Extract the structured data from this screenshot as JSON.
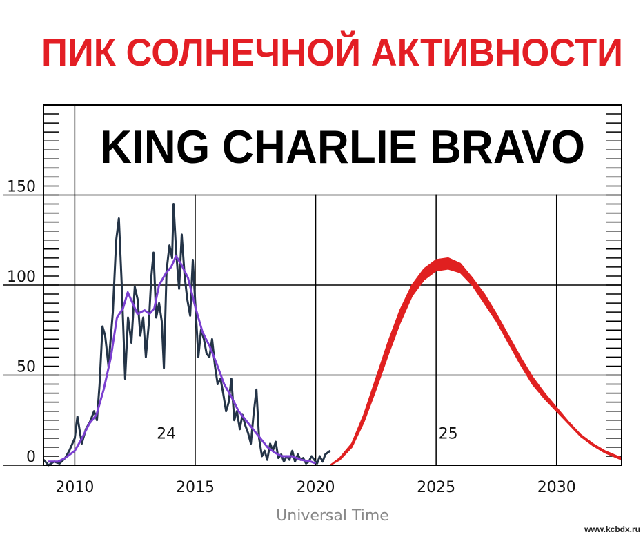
{
  "chart_data": {
    "type": "line",
    "title": "ПИК СОЛНЕЧНОЙ АКТИВНОСТИ",
    "subtitle": "KING CHARLIE BRAVO",
    "x_label": "Universal Time",
    "watermark": "www.kcbdx.ru",
    "xlim": [
      2008.7,
      2032.7
    ],
    "ylim": [
      0,
      200
    ],
    "xticks": [
      2010,
      2015,
      2020,
      2025,
      2030
    ],
    "yticks": [
      0,
      50,
      100,
      150
    ],
    "y_minor_step": 5,
    "grid": true,
    "annotations": [
      {
        "text": "24",
        "x": 2013.8,
        "y": 17
      },
      {
        "text": "25",
        "x": 2025.5,
        "y": 17
      }
    ],
    "series": [
      {
        "color": "#243447",
        "x": [
          2008.71,
          2008.91,
          2009.14,
          2009.37,
          2009.6,
          2009.77,
          2010.0,
          2010.11,
          2010.29,
          2010.46,
          2010.63,
          2010.8,
          2010.92,
          2011.03,
          2011.15,
          2011.26,
          2011.4,
          2011.58,
          2011.72,
          2011.83,
          2011.95,
          2012.09,
          2012.21,
          2012.35,
          2012.49,
          2012.61,
          2012.72,
          2012.84,
          2012.95,
          2013.07,
          2013.18,
          2013.27,
          2013.38,
          2013.5,
          2013.61,
          2013.7,
          2013.81,
          2013.93,
          2014.04,
          2014.1,
          2014.21,
          2014.33,
          2014.44,
          2014.56,
          2014.67,
          2014.79,
          2014.9,
          2015.01,
          2015.13,
          2015.24,
          2015.36,
          2015.47,
          2015.59,
          2015.7,
          2015.82,
          2015.93,
          2016.05,
          2016.16,
          2016.28,
          2016.39,
          2016.5,
          2016.62,
          2016.73,
          2016.85,
          2016.96,
          2017.08,
          2017.19,
          2017.31,
          2017.42,
          2017.54,
          2017.65,
          2017.77,
          2017.88,
          2017.99,
          2018.11,
          2018.22,
          2018.34,
          2018.45,
          2018.57,
          2018.68,
          2018.8,
          2018.91,
          2019.03,
          2019.14,
          2019.26,
          2019.37,
          2019.48,
          2019.6,
          2019.71,
          2019.83,
          2019.94,
          2020.06,
          2020.17,
          2020.29,
          2020.4,
          2020.6
        ],
        "values": [
          3,
          0,
          2,
          1,
          4,
          8,
          15,
          27,
          12,
          20,
          24,
          30,
          25,
          45,
          77,
          72,
          55,
          85,
          125,
          137,
          100,
          48,
          82,
          68,
          99,
          92,
          72,
          82,
          60,
          78,
          105,
          118,
          82,
          90,
          80,
          54,
          108,
          122,
          115,
          145,
          118,
          98,
          128,
          105,
          92,
          83,
          114,
          88,
          60,
          75,
          70,
          62,
          60,
          70,
          55,
          45,
          48,
          40,
          30,
          35,
          48,
          25,
          30,
          20,
          28,
          22,
          18,
          12,
          28,
          42,
          15,
          5,
          8,
          3,
          12,
          8,
          13,
          4,
          6,
          2,
          5,
          3,
          8,
          2,
          6,
          3,
          4,
          1,
          2,
          5,
          3,
          1,
          5,
          2,
          6,
          8
        ],
        "width": 3
      },
      {
        "color": "#7b3fd0",
        "x": [
          2008.9,
          2009.3,
          2009.6,
          2010.0,
          2010.3,
          2010.6,
          2010.9,
          2011.2,
          2011.5,
          2011.75,
          2012.0,
          2012.2,
          2012.4,
          2012.6,
          2012.9,
          2013.1,
          2013.3,
          2013.5,
          2013.8,
          2014.0,
          2014.2,
          2014.4,
          2014.7,
          2015.0,
          2015.3,
          2015.6,
          2015.9,
          2016.2,
          2016.5,
          2016.8,
          2017.1,
          2017.4,
          2017.7,
          2018.0,
          2018.3,
          2018.6,
          2019.0,
          2019.4,
          2019.8,
          2020.0
        ],
        "values": [
          2,
          2,
          4,
          8,
          15,
          23,
          28,
          42,
          60,
          82,
          87,
          96,
          90,
          84,
          86,
          84,
          87,
          100,
          107,
          110,
          116,
          112,
          104,
          88,
          74,
          66,
          56,
          45,
          38,
          30,
          25,
          20,
          15,
          10,
          7,
          5,
          5,
          3,
          2,
          1
        ],
        "width": 3
      }
    ],
    "band": {
      "color": "#e02020",
      "x": [
        2020.6,
        2021.0,
        2021.5,
        2022.0,
        2022.5,
        2023.0,
        2023.5,
        2024.0,
        2024.5,
        2025.0,
        2025.5,
        2026.0,
        2026.5,
        2027.0,
        2027.5,
        2028.0,
        2028.5,
        2029.0,
        2029.5,
        2030.0,
        2030.5,
        2031.0,
        2031.5,
        2032.0,
        2032.7
      ],
      "upper": [
        0,
        4,
        12,
        28,
        48,
        68,
        86,
        100,
        109,
        114,
        115,
        112,
        104,
        95,
        84,
        72,
        60,
        49,
        40,
        32,
        24,
        17,
        12,
        8,
        4
      ],
      "lower": [
        0,
        3,
        10,
        24,
        42,
        61,
        79,
        94,
        103,
        108,
        109,
        107,
        100,
        90,
        80,
        68,
        56,
        45,
        37,
        30,
        23,
        16,
        11,
        7,
        3
      ]
    }
  }
}
